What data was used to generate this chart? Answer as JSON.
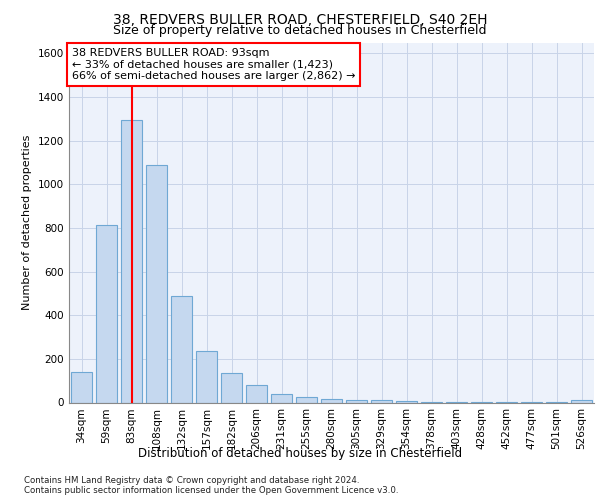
{
  "title1": "38, REDVERS BULLER ROAD, CHESTERFIELD, S40 2EH",
  "title2": "Size of property relative to detached houses in Chesterfield",
  "xlabel": "Distribution of detached houses by size in Chesterfield",
  "ylabel": "Number of detached properties",
  "categories": [
    "34sqm",
    "59sqm",
    "83sqm",
    "108sqm",
    "132sqm",
    "157sqm",
    "182sqm",
    "206sqm",
    "231sqm",
    "255sqm",
    "280sqm",
    "305sqm",
    "329sqm",
    "354sqm",
    "378sqm",
    "403sqm",
    "428sqm",
    "452sqm",
    "477sqm",
    "501sqm",
    "526sqm"
  ],
  "values": [
    140,
    815,
    1295,
    1090,
    490,
    235,
    135,
    78,
    40,
    25,
    18,
    12,
    10,
    5,
    3,
    2,
    2,
    1,
    1,
    1,
    10
  ],
  "bar_color": "#c5d8ef",
  "bar_edge_color": "#6fa8d4",
  "vline_x": 2,
  "vline_color": "red",
  "annotation_box_text": "38 REDVERS BULLER ROAD: 93sqm\n← 33% of detached houses are smaller (1,423)\n66% of semi-detached houses are larger (2,862) →",
  "grid_color": "#c8d4e8",
  "background_color": "#edf2fb",
  "ylim": [
    0,
    1650
  ],
  "yticks": [
    0,
    200,
    400,
    600,
    800,
    1000,
    1200,
    1400,
    1600
  ],
  "footnote": "Contains HM Land Registry data © Crown copyright and database right 2024.\nContains public sector information licensed under the Open Government Licence v3.0.",
  "title1_fontsize": 10,
  "title2_fontsize": 9,
  "xlabel_fontsize": 8.5,
  "ylabel_fontsize": 8,
  "tick_fontsize": 7.5,
  "annot_fontsize": 8
}
